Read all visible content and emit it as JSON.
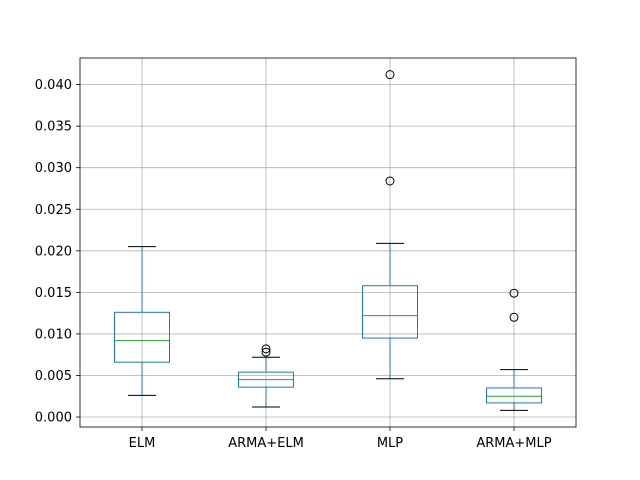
{
  "chart_data": {
    "type": "box",
    "title": "",
    "xlabel": "",
    "ylabel": "",
    "categories": [
      "ELM",
      "ARMA+ELM",
      "MLP",
      "ARMA+MLP"
    ],
    "ylim": [
      -0.0012,
      0.0432
    ],
    "yticks": [
      0.0,
      0.005,
      0.01,
      0.015,
      0.02,
      0.025,
      0.03,
      0.035,
      0.04
    ],
    "ytick_labels": [
      "0.000",
      "0.005",
      "0.010",
      "0.015",
      "0.020",
      "0.025",
      "0.030",
      "0.035",
      "0.040"
    ],
    "grid": true,
    "series": [
      {
        "category": "ELM",
        "whisker_low": 0.0026,
        "q1": 0.0066,
        "median": 0.0092,
        "q3": 0.0126,
        "whisker_high": 0.0205,
        "outliers": []
      },
      {
        "category": "ARMA+ELM",
        "whisker_low": 0.0012,
        "q1": 0.0036,
        "median": 0.0045,
        "q3": 0.0054,
        "whisker_high": 0.0072,
        "outliers": [
          0.0078,
          0.0082
        ]
      },
      {
        "category": "MLP",
        "whisker_low": 0.0046,
        "q1": 0.0095,
        "median": 0.0122,
        "q3": 0.0158,
        "whisker_high": 0.0209,
        "outliers": [
          0.0284,
          0.0412
        ]
      },
      {
        "category": "ARMA+MLP",
        "whisker_low": 0.0008,
        "q1": 0.0017,
        "median": 0.0025,
        "q3": 0.0035,
        "whisker_high": 0.0057,
        "outliers": [
          0.012,
          0.0149
        ]
      }
    ],
    "colors": {
      "box": "#1f77b4",
      "median": "#2ca02c",
      "whisker": "#000000",
      "grid": "#b0b0b0",
      "outlier": "#000000"
    }
  }
}
